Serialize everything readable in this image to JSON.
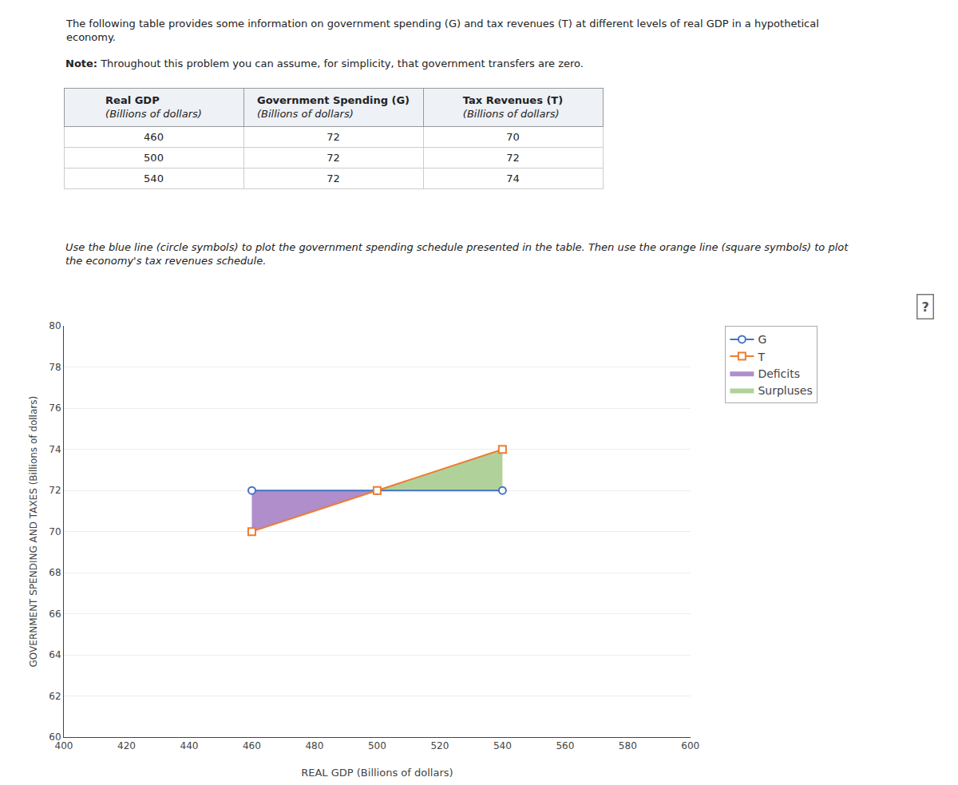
{
  "chart_data": {
    "type": "line",
    "title": [
      "The following table provides some information on government spending (G) and tax revenues (T) at different levels of real GDP in a hypothetical",
      "economy."
    ],
    "note_label": "Note:",
    "note": "Throughout this problem you can assume, for simplicity, that government transfers are zero.",
    "table": {
      "header": [
        [
          "Real GDP",
          "(Billions of dollars)"
        ],
        [
          "Government Spending (G)",
          "(Billions of dollars)"
        ],
        [
          "Tax Revenues (T)",
          "(Billions of dollars)"
        ]
      ],
      "rows": [
        [
          460,
          72,
          70
        ],
        [
          500,
          72,
          72
        ],
        [
          540,
          72,
          74
        ]
      ]
    },
    "instruction": [
      "Use the blue line (circle symbols) to plot the government spending schedule presented in the table. Then use the orange line (square symbols) to plot",
      "the economy's tax revenues schedule."
    ],
    "annotations": [
      "?"
    ],
    "x": [
      460,
      500,
      540
    ],
    "series": [
      {
        "name": "G",
        "color": "#4472c4",
        "marker": "circle",
        "values": [
          72,
          72,
          72
        ]
      },
      {
        "name": "T",
        "color": "#ed7d31",
        "marker": "square",
        "values": [
          70,
          72,
          74
        ]
      }
    ],
    "regions": [
      {
        "name": "Deficits",
        "color": "#7030a0",
        "upper": "G",
        "lower": "T"
      },
      {
        "name": "Surpluses",
        "color": "#70ad47",
        "upper": "T",
        "lower": "G"
      }
    ],
    "xlabel": "REAL GDP (Billions of dollars)",
    "ylabel": "GOVERNMENT SPENDING AND TAXES (Billions of dollars)",
    "xlim": [
      400,
      600
    ],
    "ylim": [
      60,
      80
    ],
    "xticks": [
      400,
      420,
      440,
      460,
      480,
      500,
      520,
      540,
      560,
      580,
      600
    ],
    "yticks": [
      60,
      62,
      64,
      66,
      68,
      70,
      72,
      74,
      76,
      78,
      80
    ],
    "grid": "y",
    "legend": "right"
  }
}
